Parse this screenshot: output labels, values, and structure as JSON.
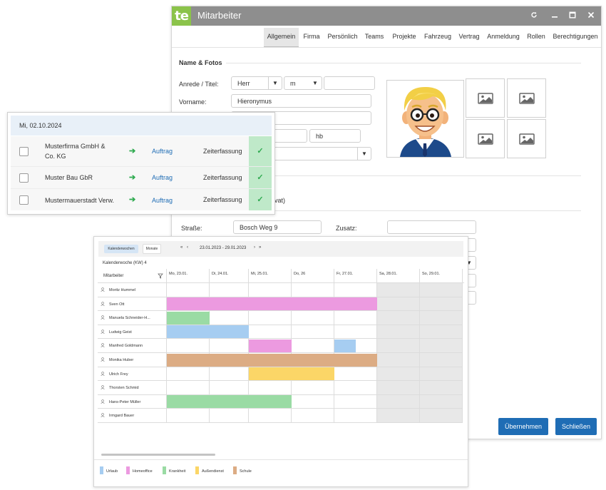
{
  "window": {
    "logo_text": "te",
    "title": "Mitarbeiter",
    "controls": [
      "refresh-icon",
      "minimize-icon",
      "maximize-icon",
      "close-icon"
    ],
    "tabs": [
      "Allgemein",
      "Firma",
      "Persönlich",
      "Teams",
      "Projekte",
      "Fahrzeug",
      "Vertrag",
      "Anmeldung",
      "Rollen",
      "Berechtigungen"
    ],
    "active_tab": "Allgemein",
    "section_title": "Name & Fotos",
    "anrede_label": "Anrede / Titel:",
    "anrede_value": "Herr",
    "gender_value": "m",
    "titel_value": "",
    "vorname_label": "Vorname:",
    "vorname_value": "Hieronymus",
    "kuerzel_value": "hb",
    "privat_fragment": "vat)",
    "strasse_label": "Straße:",
    "strasse_value": "Bosch Weg 9",
    "zusatz_label": "Zusatz:",
    "buttons": {
      "apply": "Übernehmen",
      "close": "Schließen"
    },
    "accent": "#1f6db5"
  },
  "orders": {
    "date": "Mi, 02.10.2024",
    "rows": [
      {
        "company": "Musterfirma GmbH & Co. KG",
        "company_l1": "Musterfirma GmbH &",
        "company_l2": "Co. KG",
        "link": "Auftrag",
        "type": "Zeiterfassung"
      },
      {
        "company": "Muster Bau GbR",
        "company_l1": "Muster Bau GbR",
        "company_l2": "",
        "link": "Auftrag",
        "type": "Zeiterfassung"
      },
      {
        "company": "Mustermauerstadt Verw.",
        "company_l1": "Mustermauerstadt Verw.",
        "company_l2": "",
        "link": "Auftrag",
        "type": "Zeiterfassung"
      }
    ]
  },
  "calendar": {
    "view_buttons": [
      "Kalenderwochen",
      "Monate"
    ],
    "active_view": "Kalenderwochen",
    "range": "23.01.2023 - 29.01.2023",
    "week_label": "Kalenderwoche (KW) 4",
    "employee_header": "Mitarbeiter",
    "days": [
      "Mo, 23.01.",
      "Di, 24.01.",
      "Mi, 25.01.",
      "Do, 26",
      "Fr, 27.01.",
      "Sa, 28.01.",
      "So, 29.01."
    ],
    "employees": [
      {
        "name": "Moritz Hummel",
        "bars": []
      },
      {
        "name": "Sven Ott",
        "bars": [
          {
            "type": "Homeoffice",
            "start": 0,
            "end": 5
          }
        ]
      },
      {
        "name": "Manuela Schneider-H...",
        "bars": [
          {
            "type": "Krankheit",
            "start": 0,
            "end": 1
          }
        ]
      },
      {
        "name": "Ludwig Geist",
        "bars": [
          {
            "type": "Urlaub",
            "start": 0,
            "end": 2
          }
        ]
      },
      {
        "name": "Manfred Goldmann",
        "bars": [
          {
            "type": "Homeoffice",
            "start": 2,
            "end": 3
          },
          {
            "type": "Urlaub",
            "start": 4,
            "end": 4.5
          }
        ]
      },
      {
        "name": "Monika Huber",
        "bars": [
          {
            "type": "Schule",
            "start": 0,
            "end": 5
          }
        ]
      },
      {
        "name": "Ulrich Frey",
        "bars": [
          {
            "type": "Außendienst",
            "start": 2,
            "end": 4
          }
        ]
      },
      {
        "name": "Thorsten Schmid",
        "bars": []
      },
      {
        "name": "Hans-Peter Müller",
        "bars": [
          {
            "type": "Krankheit",
            "start": 0,
            "end": 3
          }
        ]
      },
      {
        "name": "Irmgard Bauer",
        "bars": []
      }
    ],
    "legend": [
      {
        "label": "Urlaub",
        "color": "#a6cdf1"
      },
      {
        "label": "Homeoffice",
        "color": "#ec9ae0"
      },
      {
        "label": "Krankheit",
        "color": "#9adba4"
      },
      {
        "label": "Außendienst",
        "color": "#fbd667"
      },
      {
        "label": "Schule",
        "color": "#dcac84"
      }
    ]
  }
}
